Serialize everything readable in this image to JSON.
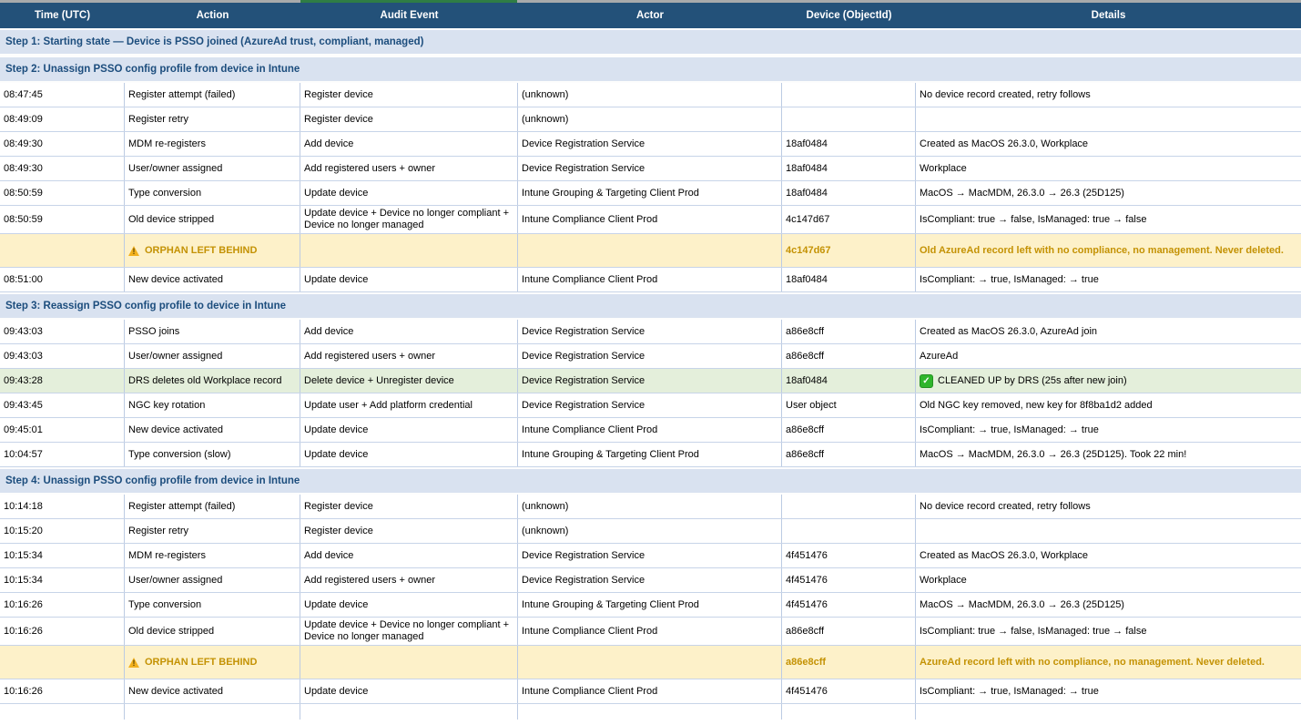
{
  "table": {
    "columns": [
      "Time (UTC)",
      "Action",
      "Audit Event",
      "Actor",
      "Device (ObjectId)",
      "Details"
    ],
    "sections": [
      {
        "header": "Step 1: Starting state — Device is PSSO joined (AzureAd trust, compliant, managed)",
        "rows": []
      },
      {
        "header": "Step 2: Unassign PSSO config profile from device in Intune",
        "rows": [
          {
            "type": "normal",
            "time": "08:47:45",
            "action": "Register attempt (failed)",
            "audit": "Register device",
            "actor": "(unknown)",
            "device": "",
            "details": "No device record created, retry follows"
          },
          {
            "type": "normal",
            "time": "08:49:09",
            "action": "Register retry",
            "audit": "Register device",
            "actor": "(unknown)",
            "device": "",
            "details": ""
          },
          {
            "type": "normal",
            "time": "08:49:30",
            "action": "MDM re-registers",
            "audit": "Add device",
            "actor": "Device Registration Service",
            "device": "18af0484",
            "details": "Created as MacOS 26.3.0, Workplace"
          },
          {
            "type": "normal",
            "time": "08:49:30",
            "action": "User/owner assigned",
            "audit": "Add registered users + owner",
            "actor": "Device Registration Service",
            "device": "18af0484",
            "details": "Workplace"
          },
          {
            "type": "normal",
            "time": "08:50:59",
            "action": "Type conversion",
            "audit": "Update device",
            "actor": "Intune Grouping & Targeting Client Prod",
            "device": "18af0484",
            "details": "MacOS → MacMDM, 26.3.0 → 26.3 (25D125)"
          },
          {
            "type": "normal",
            "time": "08:50:59",
            "action": "Old device stripped",
            "audit": "Update device + Device no longer compliant + Device no longer managed",
            "actor": "Intune Compliance Client Prod",
            "device": "4c147d67",
            "details": "IsCompliant: true → false, IsManaged: true → false"
          },
          {
            "type": "orphan",
            "time": "",
            "action": "ORPHAN LEFT BEHIND",
            "audit": "",
            "actor": "",
            "device": "4c147d67",
            "details": "Old AzureAd record left with no compliance, no management. Never deleted."
          },
          {
            "type": "normal",
            "time": "08:51:00",
            "action": "New device activated",
            "audit": "Update device",
            "actor": "Intune Compliance Client Prod",
            "device": "18af0484",
            "details": "IsCompliant: → true, IsManaged: → true"
          }
        ]
      },
      {
        "header": "Step 3: Reassign PSSO config profile to device in Intune",
        "rows": [
          {
            "type": "normal",
            "time": "09:43:03",
            "action": "PSSO joins",
            "audit": "Add device",
            "actor": "Device Registration Service",
            "device": "a86e8cff",
            "details": "Created as MacOS 26.3.0, AzureAd join"
          },
          {
            "type": "normal",
            "time": "09:43:03",
            "action": "User/owner assigned",
            "audit": "Add registered users + owner",
            "actor": "Device Registration Service",
            "device": "a86e8cff",
            "details": "AzureAd"
          },
          {
            "type": "cleaned",
            "time": "09:43:28",
            "action": "DRS deletes old Workplace record",
            "audit": "Delete device + Unregister device",
            "actor": "Device Registration Service",
            "device": "18af0484",
            "details": "CLEANED UP by DRS (25s after new join)"
          },
          {
            "type": "normal",
            "time": "09:43:45",
            "action": "NGC key rotation",
            "audit": "Update user + Add platform credential",
            "actor": "Device Registration Service",
            "device": "User object",
            "details": "Old NGC key removed, new key for 8f8ba1d2 added"
          },
          {
            "type": "normal",
            "time": "09:45:01",
            "action": "New device activated",
            "audit": "Update device",
            "actor": "Intune Compliance Client Prod",
            "device": "a86e8cff",
            "details": "IsCompliant: → true, IsManaged: → true"
          },
          {
            "type": "normal",
            "time": "10:04:57",
            "action": "Type conversion (slow)",
            "audit": "Update device",
            "actor": "Intune Grouping & Targeting Client Prod",
            "device": "a86e8cff",
            "details": "MacOS → MacMDM, 26.3.0 → 26.3 (25D125). Took 22 min!"
          }
        ]
      },
      {
        "header": "Step 4: Unassign PSSO config profile from device in Intune",
        "rows": [
          {
            "type": "normal",
            "time": "10:14:18",
            "action": "Register attempt (failed)",
            "audit": "Register device",
            "actor": "(unknown)",
            "device": "",
            "details": "No device record created, retry follows"
          },
          {
            "type": "normal",
            "time": "10:15:20",
            "action": "Register retry",
            "audit": "Register device",
            "actor": "(unknown)",
            "device": "",
            "details": ""
          },
          {
            "type": "normal",
            "time": "10:15:34",
            "action": "MDM re-registers",
            "audit": "Add device",
            "actor": "Device Registration Service",
            "device": "4f451476",
            "details": "Created as MacOS 26.3.0, Workplace"
          },
          {
            "type": "normal",
            "time": "10:15:34",
            "action": "User/owner assigned",
            "audit": "Add registered users + owner",
            "actor": "Device Registration Service",
            "device": "4f451476",
            "details": "Workplace"
          },
          {
            "type": "normal",
            "time": "10:16:26",
            "action": "Type conversion",
            "audit": "Update device",
            "actor": "Intune Grouping & Targeting Client Prod",
            "device": "4f451476",
            "details": "MacOS → MacMDM, 26.3.0 → 26.3 (25D125)"
          },
          {
            "type": "normal",
            "time": "10:16:26",
            "action": "Old device stripped",
            "audit": "Update device + Device no longer compliant + Device no longer managed",
            "actor": "Intune Compliance Client Prod",
            "device": "a86e8cff",
            "details": "IsCompliant: true → false, IsManaged: true → false"
          },
          {
            "type": "orphan",
            "time": "",
            "action": "ORPHAN LEFT BEHIND",
            "audit": "",
            "actor": "",
            "device": "a86e8cff",
            "details": "AzureAd record left with no compliance, no management. Never deleted."
          },
          {
            "type": "normal",
            "time": "10:16:26",
            "action": "New device activated",
            "audit": "Update device",
            "actor": "Intune Compliance Client Prod",
            "device": "4f451476",
            "details": "IsCompliant: → true, IsManaged: → true"
          },
          {
            "type": "empty",
            "time": "",
            "action": "",
            "audit": "",
            "actor": "",
            "device": "",
            "details": ""
          }
        ]
      }
    ]
  },
  "icons": {
    "warning": "⚠",
    "check": "✓"
  },
  "colors": {
    "header_bg": "#235179",
    "header_text": "#ffffff",
    "section_bg": "#d9e2f0",
    "section_text": "#1c4d7d",
    "orphan_bg": "#fdf1c9",
    "orphan_text": "#c49204",
    "cleaned_bg": "#e4efdb",
    "check_green": "#2fb52c",
    "warning_yellow": "#f2b01e",
    "accent_green": "#2f7d45",
    "grid_line": "#bccbe3"
  }
}
